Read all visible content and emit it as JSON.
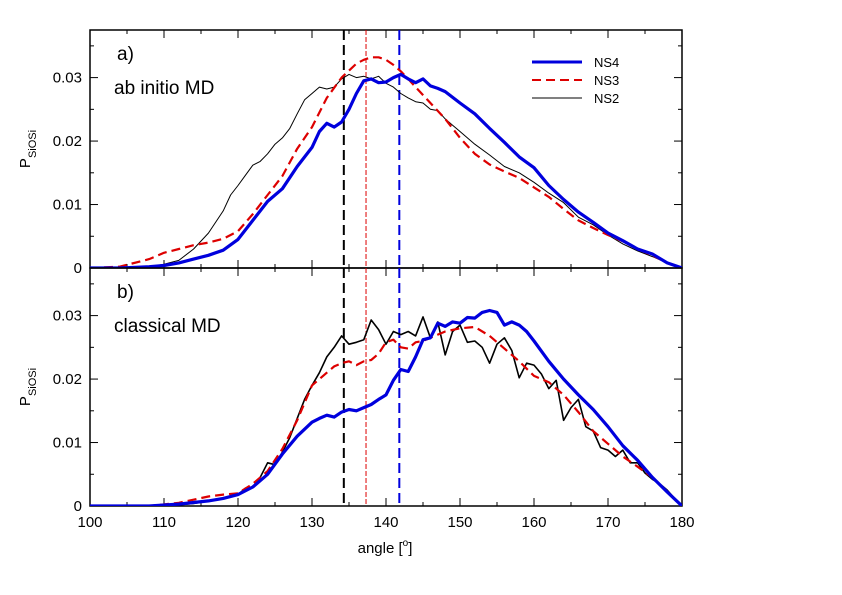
{
  "chart_data": {
    "type": "line",
    "xlabel": "angle [",
    "xlabel_sup": "o",
    "xlabel_end": "]",
    "xlim": [
      100,
      180
    ],
    "x_ticks": [
      100,
      110,
      120,
      130,
      140,
      150,
      160,
      170,
      180
    ],
    "x_tick_labels": [
      "100",
      "110",
      "120",
      "130",
      "140",
      "150",
      "160",
      "170",
      "180"
    ],
    "vlines": [
      {
        "name": "NS2",
        "x": 134.3,
        "color": "#000000",
        "dash": "long"
      },
      {
        "name": "NS3",
        "x": 137.3,
        "color": "#dd0000",
        "dash": "thin"
      },
      {
        "name": "NS4",
        "x": 141.8,
        "color": "#0000dd",
        "dash": "long"
      }
    ],
    "legend": [
      {
        "label": "NS4",
        "color": "#0000dd",
        "style": "thick"
      },
      {
        "label": "NS3",
        "color": "#dd0000",
        "style": "dashed"
      },
      {
        "label": "NS2",
        "color": "#000000",
        "style": "thin"
      }
    ],
    "panels": [
      {
        "label": "a)",
        "subtitle": "ab initio MD",
        "ylabel_main": "P",
        "ylabel_sub": "SiOSi",
        "ylim": [
          0,
          0.0375
        ],
        "y_ticks": [
          0,
          0.01,
          0.02,
          0.03
        ],
        "y_tick_labels": [
          "0",
          "0.01",
          "0.02",
          "0.03"
        ],
        "series": [
          {
            "name": "NS4",
            "color": "#0000dd",
            "width": 3.2,
            "dash": "",
            "x": [
              100,
              104,
              108,
              110,
              112,
              114,
              116,
              118,
              120,
              122,
              124,
              126,
              128,
              130,
              131,
              132,
              133,
              134,
              135,
              136,
              137,
              138,
              139,
              140,
              141,
              142,
              143,
              144,
              145,
              146,
              147,
              148,
              150,
              152,
              154,
              156,
              158,
              160,
              162,
              164,
              166,
              168,
              170,
              172,
              174,
              176,
              178,
              180
            ],
            "y": [
              0,
              0,
              0.0002,
              0.0004,
              0.0008,
              0.0014,
              0.002,
              0.0028,
              0.0045,
              0.0075,
              0.0105,
              0.0125,
              0.016,
              0.019,
              0.0215,
              0.0228,
              0.0222,
              0.023,
              0.025,
              0.0275,
              0.0295,
              0.0298,
              0.0292,
              0.0293,
              0.03,
              0.0305,
              0.0298,
              0.0292,
              0.0298,
              0.0287,
              0.0283,
              0.0278,
              0.026,
              0.0243,
              0.022,
              0.0198,
              0.0175,
              0.0158,
              0.013,
              0.0108,
              0.0088,
              0.0072,
              0.0055,
              0.0043,
              0.003,
              0.0022,
              0.0008,
              0
            ]
          },
          {
            "name": "NS3",
            "color": "#dd0000",
            "width": 2.2,
            "dash": "9,5",
            "x": [
              100,
              104,
              108,
              110,
              112,
              114,
              116,
              118,
              120,
              122,
              124,
              126,
              128,
              130,
              132,
              134,
              136,
              137,
              138,
              139,
              140,
              141,
              142,
              143,
              144,
              146,
              148,
              150,
              152,
              154,
              156,
              158,
              160,
              162,
              164,
              166,
              168,
              170,
              172,
              174,
              176,
              178,
              180
            ],
            "y": [
              0,
              0.0002,
              0.0014,
              0.0024,
              0.003,
              0.0036,
              0.004,
              0.0046,
              0.0058,
              0.0085,
              0.0115,
              0.0145,
              0.0188,
              0.0222,
              0.0268,
              0.03,
              0.0322,
              0.0328,
              0.0332,
              0.0332,
              0.0328,
              0.032,
              0.031,
              0.0298,
              0.0285,
              0.026,
              0.0235,
              0.0205,
              0.018,
              0.0163,
              0.0152,
              0.0142,
              0.0127,
              0.0112,
              0.0093,
              0.0075,
              0.0063,
              0.0052,
              0.0042,
              0.003,
              0.002,
              0.0008,
              0
            ]
          },
          {
            "name": "NS2",
            "color": "#000000",
            "width": 1,
            "dash": "",
            "x": [
              100,
              104,
              108,
              110,
              112,
              114,
              116,
              118,
              119,
              120,
              121,
              122,
              123,
              124,
              125,
              126,
              127,
              128,
              129,
              130,
              131,
              132,
              133,
              134,
              135,
              136,
              137,
              138,
              139,
              140,
              141,
              142,
              143,
              144,
              145,
              146,
              147,
              148,
              149,
              150,
              152,
              154,
              156,
              158,
              160,
              162,
              164,
              166,
              168,
              170,
              172,
              174,
              176,
              178,
              180
            ],
            "y": [
              0,
              0,
              0.0002,
              0.0006,
              0.0012,
              0.003,
              0.0055,
              0.009,
              0.0115,
              0.013,
              0.0146,
              0.0162,
              0.0168,
              0.018,
              0.0195,
              0.0205,
              0.022,
              0.0243,
              0.0265,
              0.0275,
              0.0285,
              0.0282,
              0.0285,
              0.0298,
              0.0305,
              0.03,
              0.0302,
              0.0298,
              0.0302,
              0.0291,
              0.0285,
              0.0275,
              0.0268,
              0.0262,
              0.026,
              0.025,
              0.0248,
              0.0235,
              0.0225,
              0.0215,
              0.0195,
              0.0178,
              0.016,
              0.015,
              0.0135,
              0.0118,
              0.0103,
              0.008,
              0.0068,
              0.0052,
              0.0038,
              0.0027,
              0.0018,
              0.0008,
              0
            ]
          }
        ]
      },
      {
        "label": "b)",
        "subtitle": "classical MD",
        "ylabel_main": "P",
        "ylabel_sub": "SiOSi",
        "ylim": [
          0,
          0.0375
        ],
        "y_ticks": [
          0,
          0.01,
          0.02,
          0.03
        ],
        "y_tick_labels": [
          "0",
          "0.01",
          "0.02",
          "0.03"
        ],
        "series": [
          {
            "name": "NS4",
            "color": "#0000dd",
            "width": 3.2,
            "dash": "",
            "x": [
              100,
              108,
              112,
              116,
              118,
              120,
              122,
              124,
              126,
              128,
              130,
              131,
              132,
              133,
              134,
              135,
              136,
              137,
              138,
              139,
              140,
              141,
              142,
              143,
              144,
              145,
              146,
              147,
              148,
              149,
              150,
              151,
              152,
              153,
              154,
              155,
              156,
              157,
              158,
              159,
              160,
              162,
              164,
              166,
              168,
              170,
              172,
              174,
              176,
              178,
              180
            ],
            "y": [
              0,
              0,
              0.0003,
              0.0008,
              0.0012,
              0.0018,
              0.003,
              0.005,
              0.0082,
              0.011,
              0.0132,
              0.0138,
              0.0143,
              0.014,
              0.0148,
              0.0152,
              0.015,
              0.0155,
              0.016,
              0.0168,
              0.0175,
              0.0198,
              0.0215,
              0.0212,
              0.0235,
              0.0262,
              0.0265,
              0.0288,
              0.0283,
              0.029,
              0.0288,
              0.0297,
              0.0296,
              0.0305,
              0.0308,
              0.0305,
              0.0285,
              0.029,
              0.0285,
              0.0275,
              0.026,
              0.0228,
              0.02,
              0.0175,
              0.0152,
              0.0125,
              0.0095,
              0.0072,
              0.0045,
              0.0022,
              0
            ]
          },
          {
            "name": "NS3",
            "color": "#dd0000",
            "width": 2.2,
            "dash": "9,5",
            "x": [
              100,
              108,
              112,
              116,
              118,
              120,
              122,
              124,
              126,
              128,
              130,
              132,
              133,
              134,
              135,
              136,
              137,
              138,
              139,
              140,
              141,
              142,
              143,
              144,
              145,
              146,
              148,
              150,
              152,
              154,
              156,
              158,
              160,
              162,
              164,
              166,
              168,
              170,
              172,
              174,
              176,
              178,
              180
            ],
            "y": [
              0,
              0,
              0.0005,
              0.0015,
              0.0018,
              0.002,
              0.0035,
              0.0055,
              0.009,
              0.0135,
              0.019,
              0.021,
              0.022,
              0.0225,
              0.0228,
              0.0222,
              0.0228,
              0.023,
              0.024,
              0.0258,
              0.0262,
              0.025,
              0.0248,
              0.0258,
              0.026,
              0.0265,
              0.0275,
              0.028,
              0.0282,
              0.0268,
              0.0248,
              0.0228,
              0.0205,
              0.0195,
              0.0175,
              0.0148,
              0.0118,
              0.0098,
              0.0078,
              0.0062,
              0.0045,
              0.0022,
              0
            ]
          },
          {
            "name": "NS2",
            "color": "#000000",
            "width": 1.6,
            "dash": "",
            "x": [
              100,
              110,
              114,
              116,
              118,
              120,
              121,
              122,
              123,
              124,
              125,
              126,
              127,
              128,
              129,
              130,
              131,
              132,
              133,
              134,
              135,
              136,
              137,
              138,
              139,
              140,
              141,
              142,
              143,
              144,
              145,
              146,
              147,
              148,
              149,
              150,
              151,
              152,
              153,
              154,
              155,
              156,
              157,
              158,
              159,
              160,
              161,
              162,
              163,
              164,
              165,
              166,
              167,
              168,
              169,
              170,
              171,
              172,
              173,
              174,
              175,
              176,
              177,
              178,
              179,
              180
            ],
            "y": [
              0,
              0,
              0.0004,
              0.0008,
              0.0012,
              0.0018,
              0.0028,
              0.003,
              0.0045,
              0.0068,
              0.0065,
              0.0085,
              0.0108,
              0.0138,
              0.0168,
              0.019,
              0.021,
              0.0235,
              0.025,
              0.0268,
              0.0255,
              0.0258,
              0.0262,
              0.0293,
              0.0278,
              0.0255,
              0.0275,
              0.027,
              0.0275,
              0.0268,
              0.0298,
              0.0265,
              0.029,
              0.0238,
              0.0275,
              0.0285,
              0.0258,
              0.026,
              0.025,
              0.0225,
              0.0255,
              0.0265,
              0.0245,
              0.0202,
              0.0225,
              0.0222,
              0.0208,
              0.0185,
              0.0198,
              0.0135,
              0.0155,
              0.0168,
              0.0125,
              0.0118,
              0.0092,
              0.0088,
              0.0078,
              0.0088,
              0.0068,
              0.0068,
              0.0052,
              0.0042,
              0.0035,
              0.0025,
              0.0012,
              0
            ]
          }
        ]
      }
    ]
  }
}
